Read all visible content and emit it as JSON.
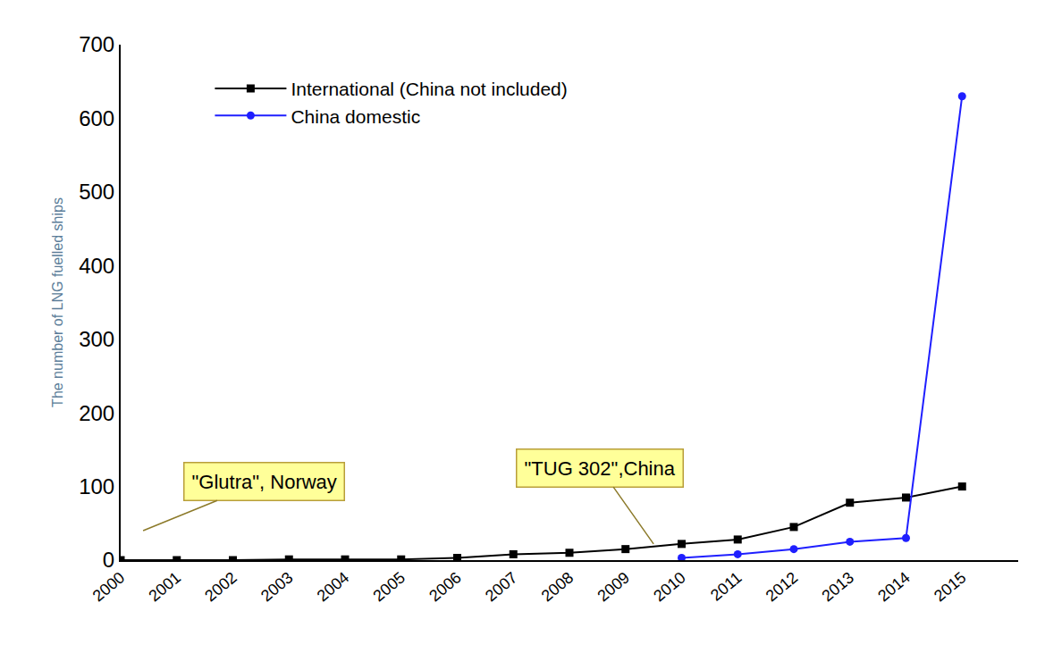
{
  "chart_data": {
    "type": "line",
    "y_label": "The number of LNG fuelled ships",
    "x": [
      2000,
      2001,
      2002,
      2003,
      2004,
      2005,
      2006,
      2007,
      2008,
      2009,
      2010,
      2011,
      2012,
      2013,
      2014,
      2015
    ],
    "series": [
      {
        "name": "International (China not included)",
        "color": "#000000",
        "marker": "square",
        "values": [
          0,
          0,
          0,
          1,
          1,
          1,
          3,
          8,
          10,
          15,
          22,
          28,
          45,
          78,
          85,
          100
        ]
      },
      {
        "name": "China domestic",
        "color": "#1f1fff",
        "marker": "circle",
        "values": [
          null,
          null,
          null,
          null,
          null,
          null,
          null,
          null,
          null,
          null,
          3,
          8,
          15,
          25,
          30,
          630
        ]
      }
    ],
    "xlim": [
      2000,
      2016
    ],
    "xticks": [
      2000,
      2001,
      2002,
      2003,
      2004,
      2005,
      2006,
      2007,
      2008,
      2009,
      2010,
      2011,
      2012,
      2013,
      2014,
      2015
    ],
    "ylim": [
      0,
      700
    ],
    "yticks": [
      0,
      100,
      200,
      300,
      400,
      500,
      600,
      700
    ],
    "grid": false,
    "legend": "top-left",
    "annotations": [
      {
        "text": "\"Glutra\", Norway",
        "x": 2000.4,
        "y": 40
      },
      {
        "text": "\"TUG 302\",China",
        "x": 2009.5,
        "y": 22
      }
    ]
  }
}
